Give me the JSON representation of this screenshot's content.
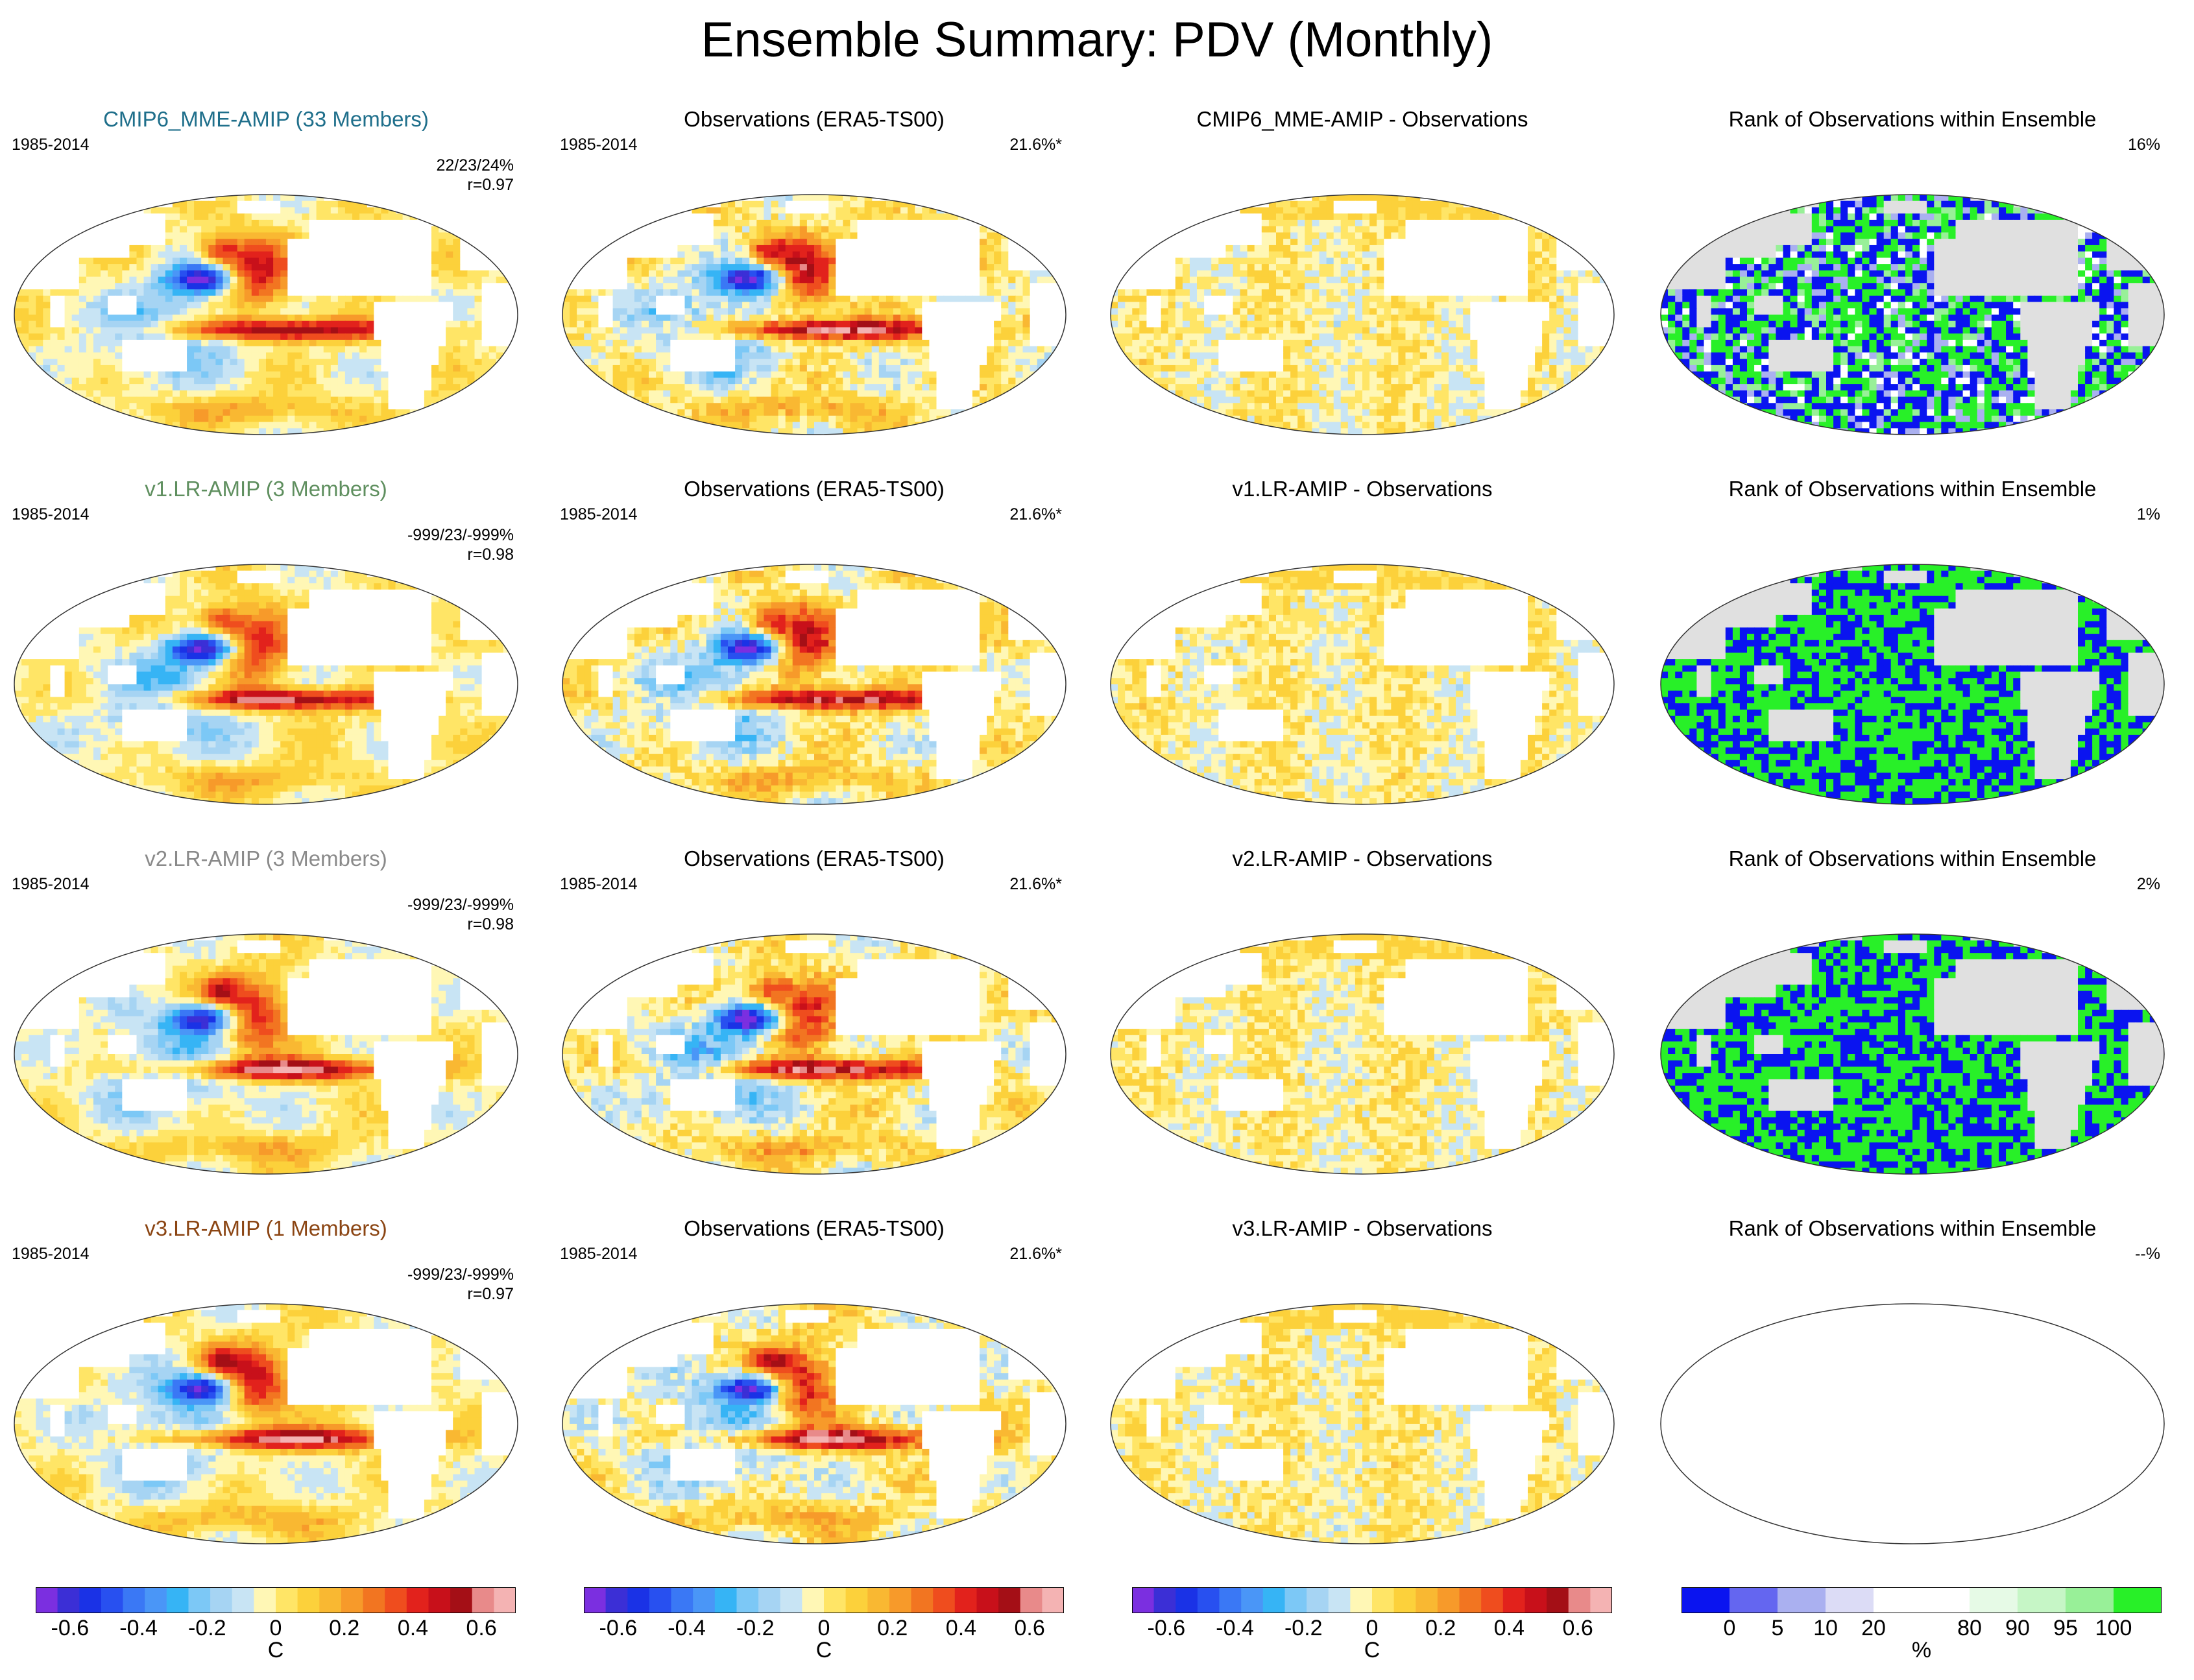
{
  "title": "Ensemble Summary: PDV (Monthly)",
  "period": "1985-2014",
  "chart_data": {
    "type": "heatmap",
    "grid_rows": [
      {
        "ensemble_title": "CMIP6_MME-AMIP (33 Members)",
        "ensemble_color": "#1f6f8b",
        "stat_pct": "22/23/24%",
        "stat_r": "r=0.97",
        "obs_title": "Observations (ERA5-TS00)",
        "obs_stat": "21.6%*",
        "diff_title": "CMIP6_MME-AMIP - Observations",
        "rank_title": "Rank of Observations within Ensemble",
        "rank_stat": "16%",
        "rank_style": "mixed"
      },
      {
        "ensemble_title": "v1.LR-AMIP (3 Members)",
        "ensemble_color": "#5f8f5f",
        "stat_pct": "-999/23/-999%",
        "stat_r": "r=0.98",
        "obs_title": "Observations (ERA5-TS00)",
        "obs_stat": "21.6%*",
        "diff_title": "v1.LR-AMIP - Observations",
        "rank_title": "Rank of Observations within Ensemble",
        "rank_stat": "1%",
        "rank_style": "binary"
      },
      {
        "ensemble_title": "v2.LR-AMIP (3 Members)",
        "ensemble_color": "#8a8a8a",
        "stat_pct": "-999/23/-999%",
        "stat_r": "r=0.98",
        "obs_title": "Observations (ERA5-TS00)",
        "obs_stat": "21.6%*",
        "diff_title": "v2.LR-AMIP - Observations",
        "rank_title": "Rank of Observations within Ensemble",
        "rank_stat": "2%",
        "rank_style": "binary"
      },
      {
        "ensemble_title": "v3.LR-AMIP (1 Members)",
        "ensemble_color": "#8b4513",
        "stat_pct": "-999/23/-999%",
        "stat_r": "r=0.97",
        "obs_title": "Observations (ERA5-TS00)",
        "obs_stat": "21.6%*",
        "diff_title": "v3.LR-AMIP - Observations",
        "rank_title": "Rank of Observations within Ensemble",
        "rank_stat": "--%",
        "rank_style": "empty"
      }
    ],
    "temperature_colorbar": {
      "unit": "C",
      "range": [
        -0.7,
        0.7
      ],
      "ticks": [
        "-0.6",
        "-0.4",
        "-0.2",
        "0",
        "0.2",
        "0.4",
        "0.6"
      ],
      "colors": [
        "#7b2fe0",
        "#3b2fd6",
        "#1a32e6",
        "#2850f0",
        "#3a78f5",
        "#4a96f7",
        "#36b4f5",
        "#7cc8f6",
        "#a6d4f3",
        "#c8e4f4",
        "#fff7b5",
        "#ffe566",
        "#fcd13b",
        "#f9b832",
        "#f79a2a",
        "#f27521",
        "#ef4d1e",
        "#e2221c",
        "#c8101a",
        "#a40f16",
        "#e88a8a",
        "#f4b3b3"
      ]
    },
    "rank_colorbar": {
      "unit": "%",
      "ticks": [
        "0",
        "5",
        "10",
        "20",
        "80",
        "90",
        "95",
        "100"
      ],
      "colors": [
        "#0a14f0",
        "#6466f0",
        "#aab0f0",
        "#dcdcf6",
        "#ffffff",
        "#ffffff",
        "#e6fae6",
        "#c6f6c6",
        "#98f098",
        "#28f028"
      ]
    }
  }
}
